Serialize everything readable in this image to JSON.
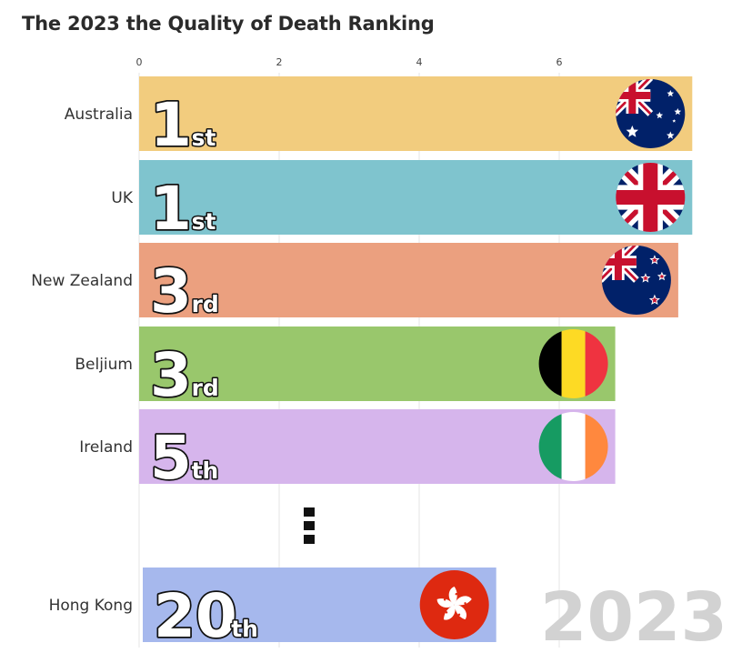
{
  "title": "The 2023 the Quality of Death Ranking",
  "chart_data": {
    "type": "bar",
    "orientation": "horizontal",
    "title": "The 2023 the Quality of Death Ranking",
    "xlim": [
      0,
      8
    ],
    "xticks": [
      "0",
      "2",
      "4",
      "6"
    ],
    "grid": true,
    "year": "2023",
    "ellipsis": "⋮",
    "categories": [
      "Australia",
      "UK",
      "New Zealand",
      "Beljium",
      "Ireland",
      "Hong Kong"
    ],
    "values": [
      7.9,
      7.9,
      7.7,
      6.8,
      6.8,
      5.1
    ],
    "ranks": [
      {
        "num": "1",
        "suffix": "st"
      },
      {
        "num": "1",
        "suffix": "st"
      },
      {
        "num": "3",
        "suffix": "rd"
      },
      {
        "num": "3",
        "suffix": "rd"
      },
      {
        "num": "5",
        "suffix": "th"
      },
      {
        "num": "20",
        "suffix": "th"
      }
    ],
    "colors": [
      "#f2cc7e",
      "#7fc4ce",
      "#eba07f",
      "#99c76c",
      "#d6b5ec",
      "#a6b8ed"
    ],
    "flags": [
      "australia-flag",
      "uk-flag",
      "new-zealand-flag",
      "belgium-flag",
      "ireland-flag",
      "hong-kong-flag"
    ]
  }
}
